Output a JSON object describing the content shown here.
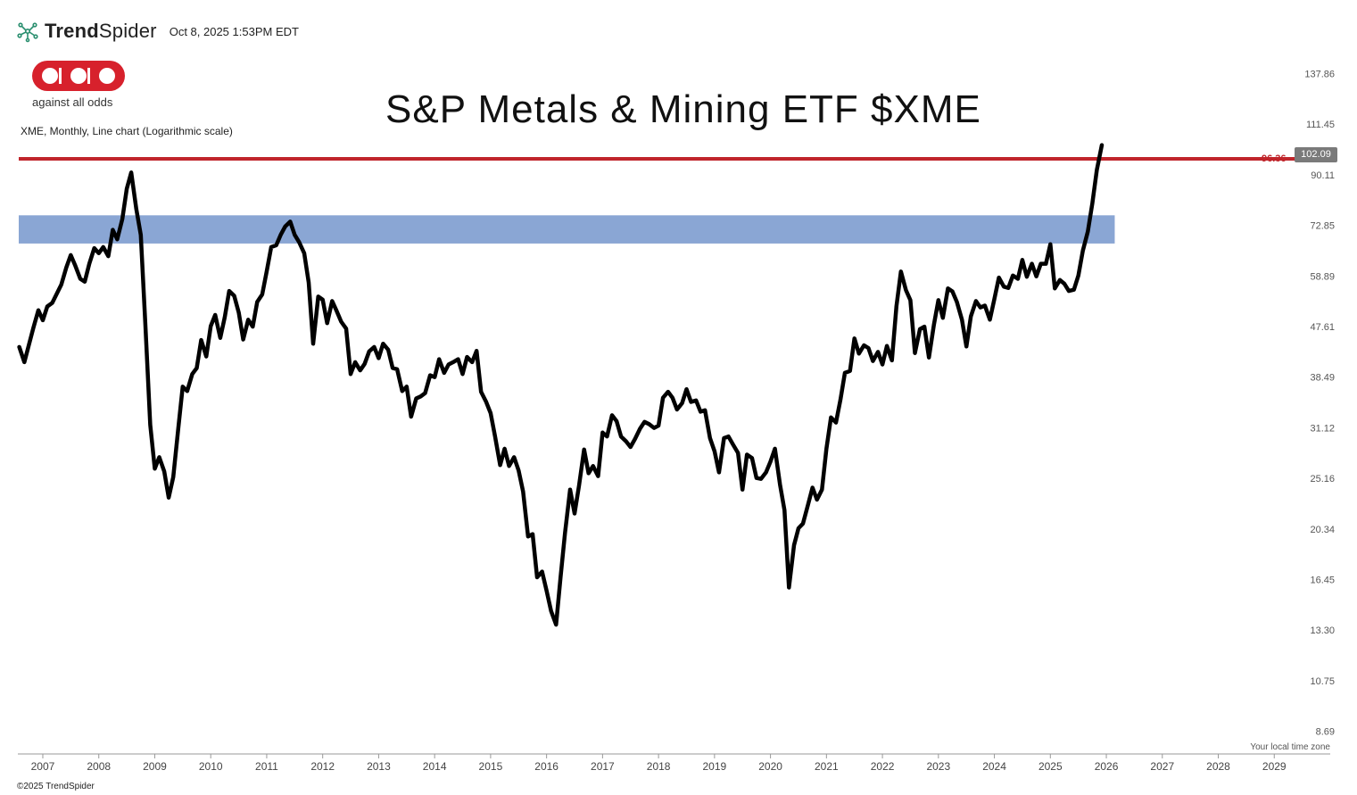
{
  "header": {
    "brand_bold": "Trend",
    "brand_light": "Spider",
    "timestamp": "Oct 8, 2025 1:53PM EDT"
  },
  "logo": {
    "text": "against all odds"
  },
  "chart_description": "XME, Monthly, Line chart (Logarithmic scale)",
  "footer": {
    "timezone": "Your local time zone",
    "copyright": "©2025 TrendSpider"
  },
  "colors": {
    "line": "#000000",
    "resistance": "#c0252b",
    "zone": "#8aa6d4",
    "badge": "#7a7a7a",
    "logo_red": "#d7212c"
  },
  "chart_data": {
    "type": "line",
    "title": "S&P Metals & Mining ETF $XME",
    "scale": "log",
    "ylim": [
      7.9,
      150
    ],
    "xlim": [
      2006.57,
      2030.0
    ],
    "y_ticks": [
      "137.86",
      "111.45",
      "90.11",
      "72.85",
      "58.89",
      "47.61",
      "38.49",
      "31.12",
      "25.16",
      "20.34",
      "16.45",
      "13.30",
      "10.75",
      "8.69"
    ],
    "x_ticks": [
      "2007",
      "2008",
      "2009",
      "2010",
      "2011",
      "2012",
      "2013",
      "2014",
      "2015",
      "2016",
      "2017",
      "2018",
      "2019",
      "2020",
      "2021",
      "2022",
      "2023",
      "2024",
      "2025",
      "2026",
      "2027",
      "2028",
      "2029"
    ],
    "resistance_level": {
      "value": 96.36,
      "label": "96.36"
    },
    "last_price": {
      "value": 102.09,
      "label": "102.09"
    },
    "support_zone": {
      "low": 67.5,
      "high": 76.0,
      "x_start": 2006.57,
      "x_end": 2026.15
    },
    "series": [
      {
        "name": "XME",
        "points": [
          [
            2006.58,
            43.7
          ],
          [
            2006.67,
            41.0
          ],
          [
            2006.83,
            47.3
          ],
          [
            2006.92,
            51.0
          ],
          [
            2007.0,
            48.9
          ],
          [
            2007.08,
            51.8
          ],
          [
            2007.17,
            52.6
          ],
          [
            2007.33,
            56.8
          ],
          [
            2007.42,
            61.0
          ],
          [
            2007.5,
            64.3
          ],
          [
            2007.58,
            61.5
          ],
          [
            2007.67,
            58.2
          ],
          [
            2007.75,
            57.5
          ],
          [
            2007.83,
            62.0
          ],
          [
            2007.92,
            66.2
          ],
          [
            2008.0,
            64.8
          ],
          [
            2008.08,
            66.5
          ],
          [
            2008.17,
            64.0
          ],
          [
            2008.25,
            71.5
          ],
          [
            2008.33,
            68.7
          ],
          [
            2008.42,
            74.8
          ],
          [
            2008.5,
            85.0
          ],
          [
            2008.58,
            91.0
          ],
          [
            2008.67,
            78.0
          ],
          [
            2008.75,
            70.0
          ],
          [
            2008.83,
            48.5
          ],
          [
            2008.92,
            31.5
          ],
          [
            2009.0,
            26.2
          ],
          [
            2009.08,
            27.5
          ],
          [
            2009.17,
            25.9
          ],
          [
            2009.25,
            23.2
          ],
          [
            2009.33,
            25.3
          ],
          [
            2009.42,
            31.0
          ],
          [
            2009.5,
            37.0
          ],
          [
            2009.58,
            36.3
          ],
          [
            2009.67,
            39.0
          ],
          [
            2009.75,
            40.0
          ],
          [
            2009.83,
            45.0
          ],
          [
            2009.92,
            42.0
          ],
          [
            2010.0,
            47.7
          ],
          [
            2010.08,
            50.0
          ],
          [
            2010.17,
            45.4
          ],
          [
            2010.25,
            49.5
          ],
          [
            2010.33,
            55.3
          ],
          [
            2010.42,
            54.2
          ],
          [
            2010.5,
            50.5
          ],
          [
            2010.58,
            45.1
          ],
          [
            2010.67,
            49.0
          ],
          [
            2010.75,
            47.6
          ],
          [
            2010.83,
            52.8
          ],
          [
            2010.92,
            54.5
          ],
          [
            2011.0,
            60.0
          ],
          [
            2011.08,
            66.5
          ],
          [
            2011.17,
            67.0
          ],
          [
            2011.25,
            70.0
          ],
          [
            2011.33,
            72.5
          ],
          [
            2011.42,
            74.0
          ],
          [
            2011.5,
            70.0
          ],
          [
            2011.58,
            67.9
          ],
          [
            2011.67,
            64.8
          ],
          [
            2011.75,
            57.3
          ],
          [
            2011.83,
            44.3
          ],
          [
            2011.92,
            54.0
          ],
          [
            2012.0,
            53.3
          ],
          [
            2012.08,
            48.3
          ],
          [
            2012.17,
            53.0
          ],
          [
            2012.25,
            50.8
          ],
          [
            2012.33,
            48.6
          ],
          [
            2012.42,
            47.2
          ],
          [
            2012.5,
            39.0
          ],
          [
            2012.58,
            41.0
          ],
          [
            2012.67,
            39.6
          ],
          [
            2012.75,
            40.7
          ],
          [
            2012.83,
            42.9
          ],
          [
            2012.92,
            43.7
          ],
          [
            2013.0,
            41.7
          ],
          [
            2013.08,
            44.3
          ],
          [
            2013.17,
            43.2
          ],
          [
            2013.25,
            40.0
          ],
          [
            2013.33,
            39.8
          ],
          [
            2013.42,
            36.3
          ],
          [
            2013.5,
            37.0
          ],
          [
            2013.58,
            32.6
          ],
          [
            2013.67,
            35.2
          ],
          [
            2013.75,
            35.5
          ],
          [
            2013.83,
            36.0
          ],
          [
            2013.92,
            38.8
          ],
          [
            2014.0,
            38.5
          ],
          [
            2014.08,
            41.5
          ],
          [
            2014.17,
            39.2
          ],
          [
            2014.25,
            40.6
          ],
          [
            2014.33,
            41.0
          ],
          [
            2014.42,
            41.5
          ],
          [
            2014.5,
            39.0
          ],
          [
            2014.58,
            41.9
          ],
          [
            2014.67,
            41.0
          ],
          [
            2014.75,
            43.0
          ],
          [
            2014.83,
            36.2
          ],
          [
            2014.92,
            34.7
          ],
          [
            2015.0,
            33.1
          ],
          [
            2015.08,
            30.0
          ],
          [
            2015.17,
            26.6
          ],
          [
            2015.25,
            28.5
          ],
          [
            2015.33,
            26.5
          ],
          [
            2015.42,
            27.5
          ],
          [
            2015.5,
            26.0
          ],
          [
            2015.58,
            23.8
          ],
          [
            2015.67,
            19.7
          ],
          [
            2015.75,
            19.9
          ],
          [
            2015.83,
            16.6
          ],
          [
            2015.92,
            17.0
          ],
          [
            2016.0,
            15.7
          ],
          [
            2016.08,
            14.4
          ],
          [
            2016.17,
            13.6
          ],
          [
            2016.25,
            16.6
          ],
          [
            2016.33,
            20.0
          ],
          [
            2016.42,
            24.0
          ],
          [
            2016.5,
            21.7
          ],
          [
            2016.58,
            24.4
          ],
          [
            2016.67,
            28.4
          ],
          [
            2016.75,
            25.7
          ],
          [
            2016.83,
            26.5
          ],
          [
            2016.92,
            25.4
          ],
          [
            2017.0,
            30.5
          ],
          [
            2017.08,
            30.0
          ],
          [
            2017.17,
            32.8
          ],
          [
            2017.25,
            32.0
          ],
          [
            2017.33,
            30.0
          ],
          [
            2017.42,
            29.4
          ],
          [
            2017.5,
            28.7
          ],
          [
            2017.58,
            29.7
          ],
          [
            2017.67,
            31.0
          ],
          [
            2017.75,
            31.9
          ],
          [
            2017.83,
            31.6
          ],
          [
            2017.92,
            31.1
          ],
          [
            2018.0,
            31.4
          ],
          [
            2018.08,
            35.3
          ],
          [
            2018.17,
            36.2
          ],
          [
            2018.25,
            35.3
          ],
          [
            2018.33,
            33.6
          ],
          [
            2018.42,
            34.5
          ],
          [
            2018.5,
            36.6
          ],
          [
            2018.58,
            34.7
          ],
          [
            2018.67,
            34.9
          ],
          [
            2018.75,
            33.3
          ],
          [
            2018.83,
            33.5
          ],
          [
            2018.92,
            29.8
          ],
          [
            2019.0,
            28.2
          ],
          [
            2019.08,
            25.8
          ],
          [
            2019.17,
            29.8
          ],
          [
            2019.25,
            30.0
          ],
          [
            2019.33,
            29.0
          ],
          [
            2019.42,
            28.0
          ],
          [
            2019.5,
            24.0
          ],
          [
            2019.58,
            27.8
          ],
          [
            2019.67,
            27.4
          ],
          [
            2019.75,
            25.2
          ],
          [
            2019.83,
            25.1
          ],
          [
            2019.92,
            25.8
          ],
          [
            2020.0,
            27.0
          ],
          [
            2020.08,
            28.5
          ],
          [
            2020.17,
            24.5
          ],
          [
            2020.25,
            22.0
          ],
          [
            2020.33,
            15.9
          ],
          [
            2020.42,
            19.0
          ],
          [
            2020.5,
            20.4
          ],
          [
            2020.58,
            20.8
          ],
          [
            2020.67,
            22.5
          ],
          [
            2020.75,
            24.2
          ],
          [
            2020.83,
            23.0
          ],
          [
            2020.92,
            24.0
          ],
          [
            2021.0,
            28.5
          ],
          [
            2021.08,
            32.5
          ],
          [
            2021.17,
            31.8
          ],
          [
            2021.25,
            35.0
          ],
          [
            2021.33,
            39.2
          ],
          [
            2021.42,
            39.5
          ],
          [
            2021.5,
            45.3
          ],
          [
            2021.58,
            42.5
          ],
          [
            2021.67,
            44.0
          ],
          [
            2021.75,
            43.5
          ],
          [
            2021.83,
            41.2
          ],
          [
            2021.92,
            42.8
          ],
          [
            2022.0,
            40.6
          ],
          [
            2022.08,
            43.9
          ],
          [
            2022.17,
            41.3
          ],
          [
            2022.25,
            51.9
          ],
          [
            2022.33,
            60.0
          ],
          [
            2022.42,
            55.5
          ],
          [
            2022.5,
            53.2
          ],
          [
            2022.58,
            42.6
          ],
          [
            2022.67,
            47.1
          ],
          [
            2022.75,
            47.6
          ],
          [
            2022.83,
            41.8
          ],
          [
            2022.92,
            48.0
          ],
          [
            2023.0,
            53.2
          ],
          [
            2023.08,
            49.4
          ],
          [
            2023.17,
            55.9
          ],
          [
            2023.25,
            55.2
          ],
          [
            2023.33,
            52.8
          ],
          [
            2023.42,
            49.0
          ],
          [
            2023.5,
            43.8
          ],
          [
            2023.58,
            49.7
          ],
          [
            2023.67,
            53.0
          ],
          [
            2023.75,
            51.6
          ],
          [
            2023.83,
            52.0
          ],
          [
            2023.92,
            49.0
          ],
          [
            2024.0,
            53.5
          ],
          [
            2024.08,
            58.5
          ],
          [
            2024.17,
            56.3
          ],
          [
            2024.25,
            56.0
          ],
          [
            2024.33,
            59.0
          ],
          [
            2024.42,
            58.2
          ],
          [
            2024.5,
            63.0
          ],
          [
            2024.58,
            58.7
          ],
          [
            2024.67,
            62.0
          ],
          [
            2024.75,
            58.8
          ],
          [
            2024.83,
            62.0
          ],
          [
            2024.92,
            62.0
          ],
          [
            2025.0,
            67.3
          ],
          [
            2025.08,
            55.9
          ],
          [
            2025.17,
            57.9
          ],
          [
            2025.25,
            57.0
          ],
          [
            2025.33,
            55.3
          ],
          [
            2025.42,
            55.6
          ],
          [
            2025.5,
            59.0
          ],
          [
            2025.58,
            65.5
          ],
          [
            2025.67,
            71.0
          ],
          [
            2025.75,
            80.0
          ],
          [
            2025.83,
            92.0
          ],
          [
            2025.92,
            102.09
          ]
        ]
      }
    ]
  }
}
